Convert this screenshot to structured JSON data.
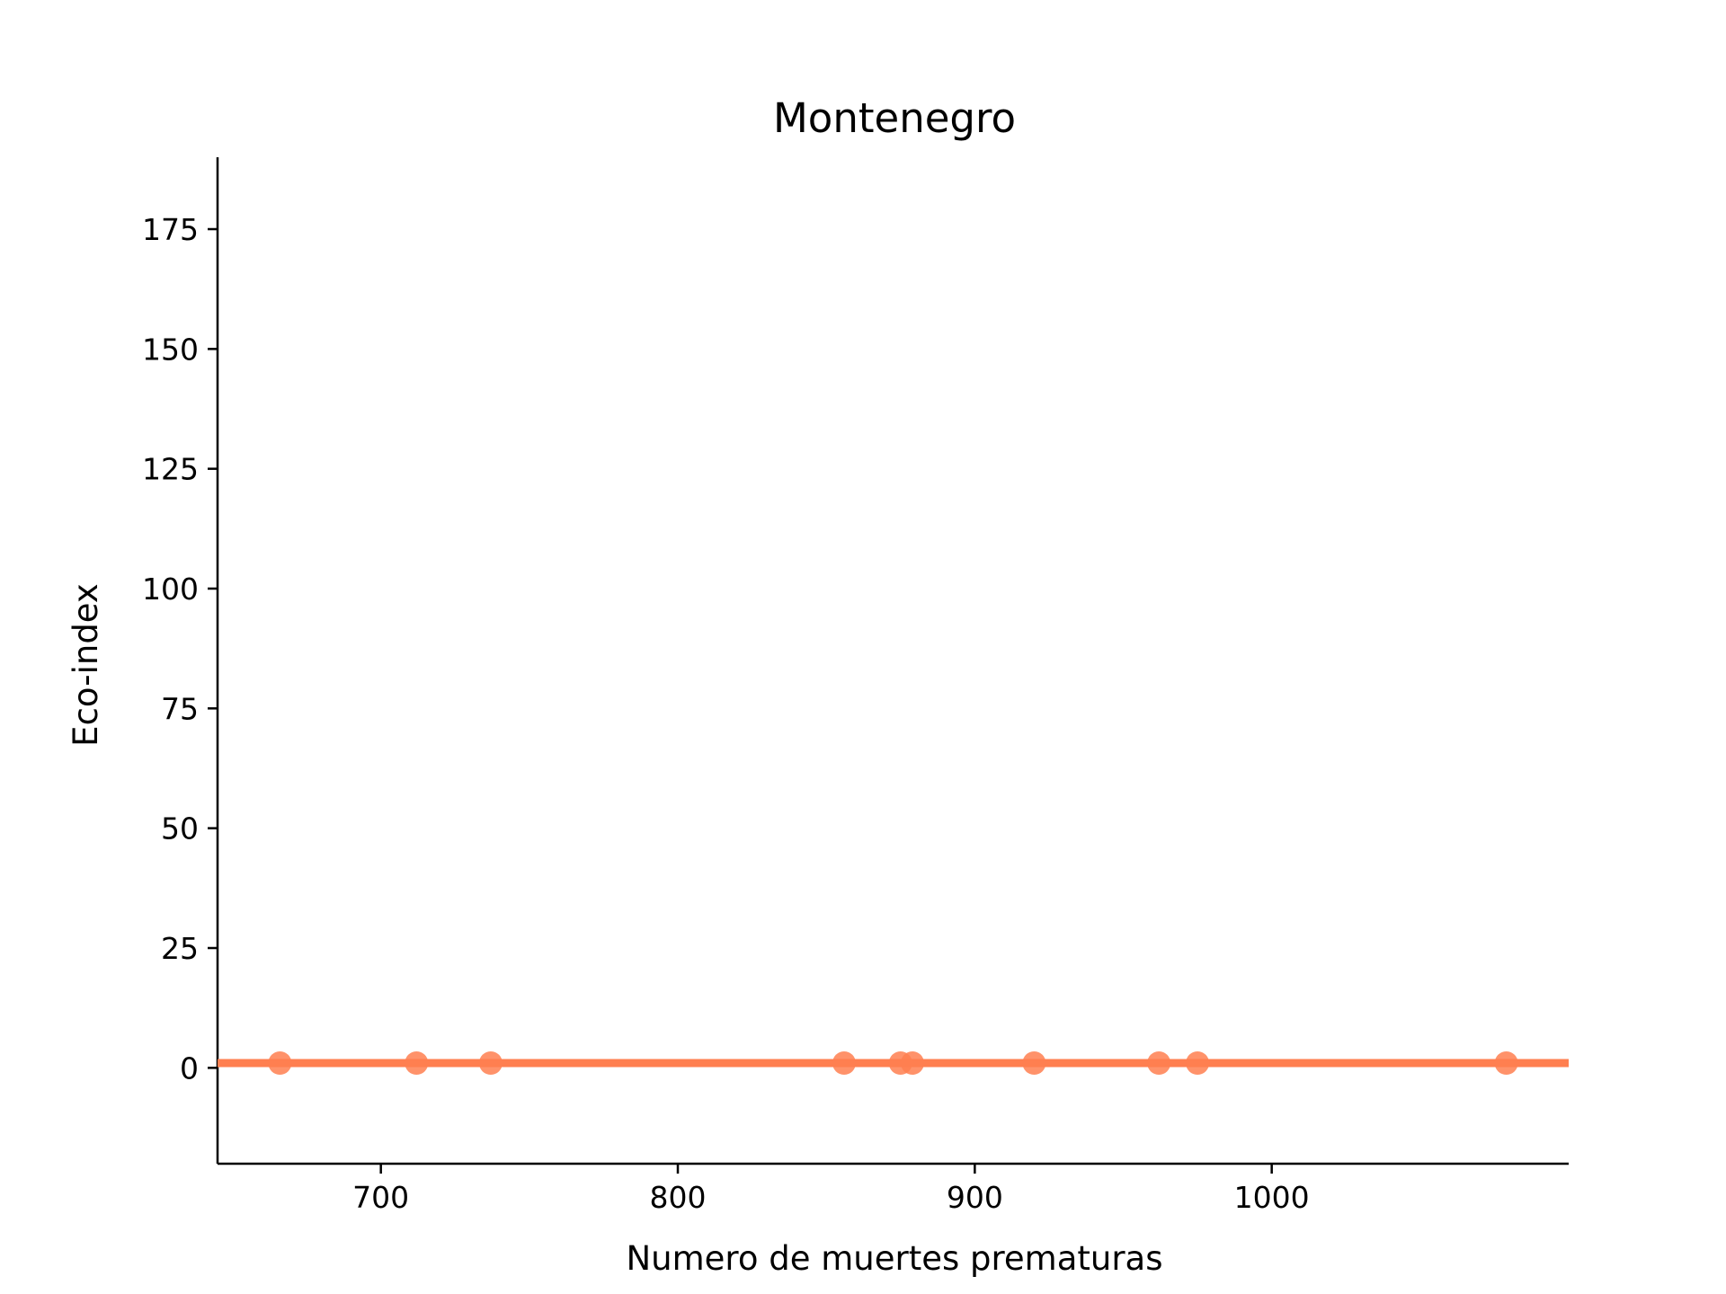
{
  "chart_data": {
    "type": "scatter",
    "title": "Montenegro",
    "xlabel": "Numero de muertes prematuras",
    "ylabel": "Eco-index",
    "xlim": [
      645,
      1100
    ],
    "ylim": [
      -20,
      190
    ],
    "x_ticks": [
      700,
      800,
      900,
      1000
    ],
    "y_ticks": [
      0,
      25,
      50,
      75,
      100,
      125,
      150,
      175
    ],
    "series": [
      {
        "color": "#ff7f50",
        "points": [
          {
            "x": 666,
            "y": 1
          },
          {
            "x": 712,
            "y": 1
          },
          {
            "x": 737,
            "y": 1
          },
          {
            "x": 856,
            "y": 1
          },
          {
            "x": 875,
            "y": 1
          },
          {
            "x": 879,
            "y": 1
          },
          {
            "x": 920,
            "y": 1
          },
          {
            "x": 962,
            "y": 1
          },
          {
            "x": 975,
            "y": 1
          },
          {
            "x": 1079,
            "y": 1
          }
        ]
      }
    ],
    "fit_line": {
      "x": [
        645,
        1100
      ],
      "y": [
        1,
        1
      ],
      "color": "#ff7f50"
    },
    "grid": false,
    "spines": [
      "left",
      "bottom"
    ]
  }
}
